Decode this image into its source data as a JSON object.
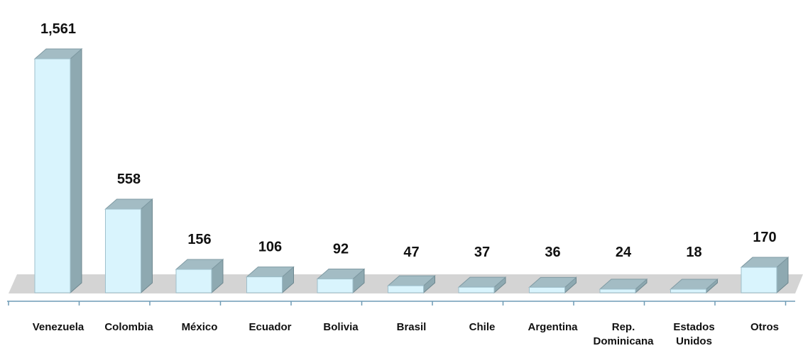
{
  "chart_data": {
    "type": "bar",
    "title": "",
    "xlabel": "",
    "ylabel": "",
    "three_d": true,
    "grid": false,
    "legend": "none",
    "categories": [
      [
        "Venezuela"
      ],
      [
        "Colombia"
      ],
      [
        "México"
      ],
      [
        "Ecuador"
      ],
      [
        "Bolivia"
      ],
      [
        "Brasil"
      ],
      [
        "Chile"
      ],
      [
        "Argentina"
      ],
      [
        "Rep.",
        "Dominicana"
      ],
      [
        "Estados",
        "Unidos"
      ],
      [
        "Otros"
      ]
    ],
    "values": [
      1561,
      558,
      156,
      106,
      92,
      47,
      37,
      36,
      24,
      18,
      170
    ],
    "value_labels": [
      "1,561",
      "558",
      "156",
      "106",
      "92",
      "47",
      "37",
      "36",
      "24",
      "18",
      "170"
    ],
    "ylim": [
      0,
      1561
    ]
  },
  "colors": {
    "bar_front": "#d9f4fd",
    "bar_top": "#a3bcc4",
    "bar_side": "#8ea9b1",
    "floor": "#d4d4d4",
    "axis": "#6f9bb5",
    "text": "#111111"
  }
}
